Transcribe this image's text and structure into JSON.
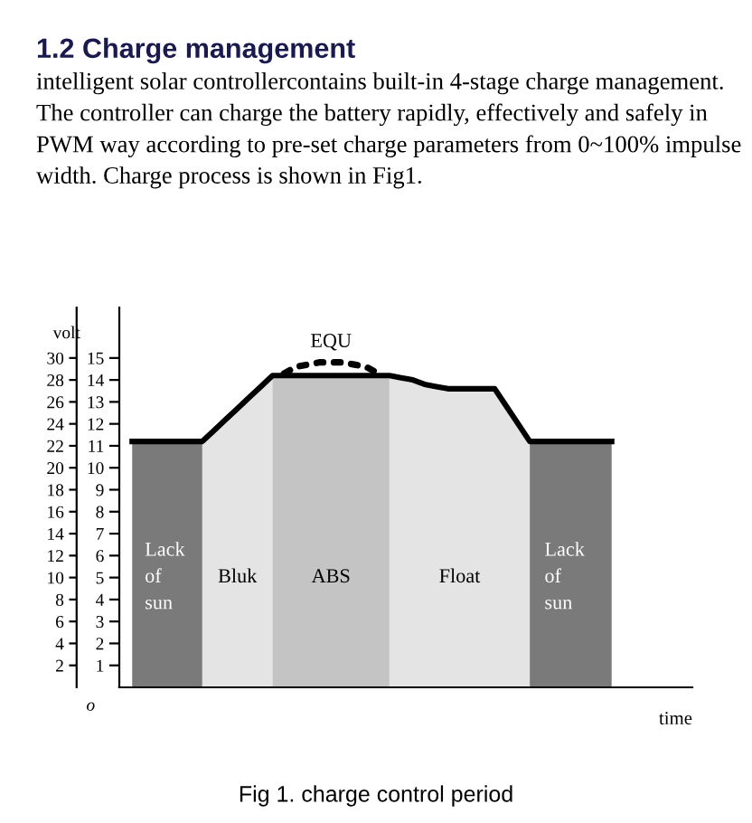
{
  "chart_data": {
    "type": "line",
    "title": "1.2 Charge management",
    "subtitle": "intelligent solar controllercontains built-in 4-stage charge management. The controller can charge the battery rapidly, effectively and safely in PWM way according to pre-set charge parameters from 0~100% impulse width. Charge process is shown in Fig1.",
    "xlabel": "time",
    "y2label": "volt",
    "categories": [
      null,
      null,
      null,
      null,
      null,
      null,
      null,
      null,
      null,
      null,
      null,
      null,
      null,
      null,
      null,
      null,
      null,
      null,
      null,
      null,
      null,
      null,
      null,
      null,
      null,
      null,
      null,
      null,
      null,
      null,
      null,
      null,
      null,
      null,
      null,
      null,
      null,
      null,
      null,
      null,
      null,
      null
    ],
    "ylim": [
      0,
      17.3
    ],
    "yticks": [
      1,
      2,
      3,
      4,
      5,
      6,
      7,
      8,
      9,
      10,
      11,
      12,
      13,
      14,
      15
    ],
    "y2lim": [
      0,
      34.6
    ],
    "y2ticks": [
      2,
      4,
      6,
      8,
      10,
      12,
      14,
      16,
      18,
      20,
      22,
      24,
      26,
      28,
      30
    ],
    "series": [
      {
        "name": "Lack\nof\nsun",
        "type": "area",
        "color": "#7a7a7a",
        "values": [
          11.2,
          11.2,
          11.2,
          11.2,
          11.2,
          11.2,
          11.2,
          null,
          null,
          null,
          null,
          null,
          null,
          null,
          null,
          null,
          null,
          null,
          null,
          null,
          null,
          null,
          null,
          null,
          null,
          null,
          null,
          null,
          null,
          null,
          null,
          null,
          null,
          null,
          null,
          null,
          null,
          null,
          null,
          null,
          null,
          null
        ]
      },
      {
        "name": "Bluk",
        "type": "area",
        "color": "#e4e4e4",
        "values": [
          null,
          null,
          null,
          null,
          null,
          null,
          11.2,
          11.7,
          12.2,
          12.7,
          13.2,
          13.7,
          14.2,
          null,
          null,
          null,
          null,
          null,
          null,
          null,
          null,
          null,
          null,
          null,
          null,
          null,
          null,
          null,
          null,
          null,
          null,
          null,
          null,
          null,
          null,
          null,
          null,
          null,
          null,
          null,
          null,
          null
        ]
      },
      {
        "name": "ABS",
        "type": "area",
        "color": "#c4c4c4",
        "values": [
          null,
          null,
          null,
          null,
          null,
          null,
          null,
          null,
          null,
          null,
          null,
          null,
          14.2,
          14.2,
          14.2,
          14.2,
          14.2,
          14.2,
          14.2,
          14.2,
          14.2,
          14.2,
          14.2,
          null,
          null,
          null,
          null,
          null,
          null,
          null,
          null,
          null,
          null,
          null,
          null,
          null,
          null,
          null,
          null,
          null,
          null,
          null
        ]
      },
      {
        "name": "Float",
        "type": "area",
        "color": "#e4e4e4",
        "values": [
          null,
          null,
          null,
          null,
          null,
          null,
          null,
          null,
          null,
          null,
          null,
          null,
          null,
          null,
          null,
          null,
          null,
          null,
          null,
          null,
          null,
          null,
          14.2,
          14.1,
          14.0,
          13.8,
          13.7,
          13.6,
          13.6,
          13.6,
          13.6,
          13.6,
          12.8,
          12.0,
          11.2,
          null,
          null,
          null,
          null,
          null,
          null,
          null
        ]
      },
      {
        "name": "Lack\nof\nsun",
        "type": "area",
        "color": "#7a7a7a",
        "values": [
          null,
          null,
          null,
          null,
          null,
          null,
          null,
          null,
          null,
          null,
          null,
          null,
          null,
          null,
          null,
          null,
          null,
          null,
          null,
          null,
          null,
          null,
          null,
          null,
          null,
          null,
          null,
          null,
          null,
          null,
          null,
          null,
          null,
          null,
          11.2,
          11.2,
          11.2,
          11.2,
          11.2,
          11.2,
          11.2,
          11.2
        ]
      },
      {
        "color": "#000000",
        "line_style": "solid",
        "values": [
          11.2,
          11.2,
          11.2,
          11.2,
          11.2,
          11.2,
          11.2,
          11.7,
          12.2,
          12.7,
          13.2,
          13.7,
          14.2,
          14.2,
          14.2,
          14.2,
          14.2,
          14.2,
          14.2,
          14.2,
          14.2,
          14.2,
          14.2,
          14.1,
          14.0,
          13.8,
          13.7,
          13.6,
          13.6,
          13.6,
          13.6,
          13.6,
          12.8,
          12.0,
          11.2,
          11.2,
          11.2,
          11.2,
          11.2,
          11.2,
          11.2,
          11.2
        ]
      },
      {
        "name": "EQU",
        "color": "#000000",
        "line_style": "dotted",
        "values": [
          null,
          null,
          null,
          null,
          null,
          null,
          null,
          null,
          null,
          null,
          null,
          null,
          null,
          14.3,
          14.6,
          14.7,
          14.8,
          14.8,
          14.8,
          14.7,
          14.6,
          14.3,
          null,
          null,
          null,
          null,
          null,
          null,
          null,
          null,
          null,
          null,
          null,
          null,
          null,
          null,
          null,
          null,
          null,
          null,
          null,
          null
        ]
      }
    ],
    "annotations": [
      "o",
      "Fig 1. charge control period"
    ]
  }
}
